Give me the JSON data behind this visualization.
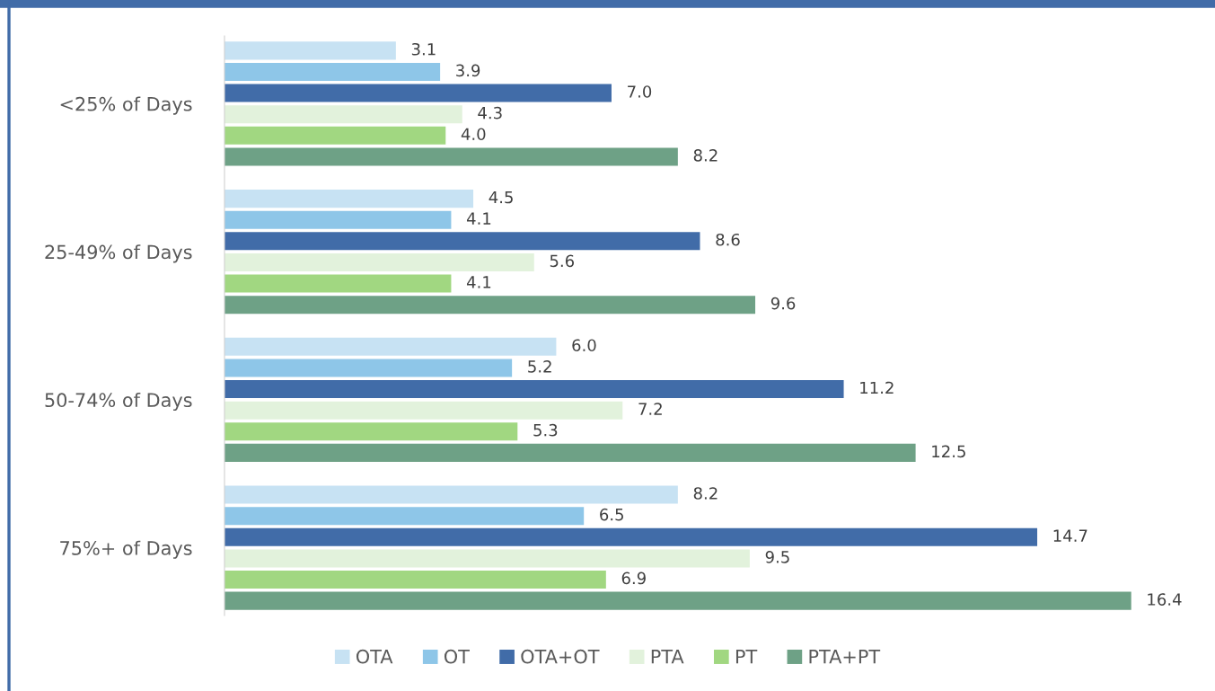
{
  "chart_data": {
    "type": "bar",
    "orientation": "horizontal",
    "categories": [
      "<25% of Days",
      "25-49% of Days",
      "50-74% of Days",
      "75%+ of Days"
    ],
    "series": [
      {
        "name": "OTA",
        "color": "#c7e2f3",
        "values": [
          3.1,
          4.5,
          6.0,
          8.2
        ],
        "value_labels": [
          "3.1",
          "4.5",
          "6.0",
          "8.2"
        ]
      },
      {
        "name": "OT",
        "color": "#8ec6e8",
        "values": [
          3.9,
          4.1,
          5.2,
          6.5
        ],
        "value_labels": [
          "3.9",
          "4.1",
          "5.2",
          "6.5"
        ]
      },
      {
        "name": "OTA+OT",
        "color": "#416ca8",
        "values": [
          7.0,
          8.6,
          11.2,
          14.7
        ],
        "value_labels": [
          "7.0",
          "8.6",
          "11.2",
          "14.7"
        ]
      },
      {
        "name": "PTA",
        "color": "#e2f2dc",
        "values": [
          4.3,
          5.6,
          7.2,
          9.5
        ],
        "value_labels": [
          "4.3",
          "5.6",
          "7.2",
          "9.5"
        ]
      },
      {
        "name": "PT",
        "color": "#a1d781",
        "values": [
          4.0,
          4.1,
          5.3,
          6.9
        ],
        "value_labels": [
          "4.0",
          "4.1",
          "5.3",
          "6.9"
        ]
      },
      {
        "name": "PTA+PT",
        "color": "#6ea186",
        "values": [
          8.2,
          9.6,
          12.5,
          16.4
        ],
        "value_labels": [
          "8.2",
          "9.6",
          "12.5",
          "16.4"
        ]
      }
    ],
    "legend": "bottom",
    "grid": false,
    "tick_labels": "y"
  }
}
